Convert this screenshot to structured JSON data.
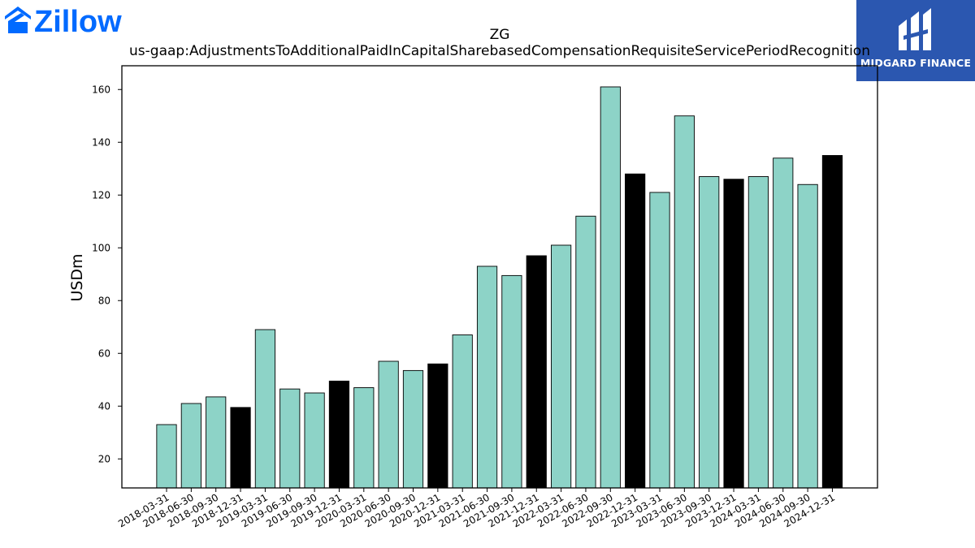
{
  "logos": {
    "left_brand": "Zillow",
    "right_brand": "MIDGARD FINANCE"
  },
  "colors": {
    "bar_default": "#8dd3c7",
    "bar_q4": "#000000",
    "zillow_blue": "#006aff",
    "midgard_blue": "#2b57b0"
  },
  "chart_data": {
    "type": "bar",
    "title": "ZG",
    "subtitle": "us-gaap:AdjustmentsToAdditionalPaidInCapitalSharebasedCompensationRequisiteServicePeriodRecognition",
    "xlabel": "",
    "ylabel": "USDm",
    "ylim": [
      9,
      169
    ],
    "yticks": [
      20,
      40,
      60,
      80,
      100,
      120,
      140,
      160
    ],
    "grid": false,
    "categories": [
      "2018-03-31",
      "2018-06-30",
      "2018-09-30",
      "2018-12-31",
      "2019-03-31",
      "2019-06-30",
      "2019-09-30",
      "2019-12-31",
      "2020-03-31",
      "2020-06-30",
      "2020-09-30",
      "2020-12-31",
      "2021-03-31",
      "2021-06-30",
      "2021-09-30",
      "2021-12-31",
      "2022-03-31",
      "2022-06-30",
      "2022-09-30",
      "2022-12-31",
      "2023-03-31",
      "2023-06-30",
      "2023-09-30",
      "2023-12-31",
      "2024-03-31",
      "2024-06-30",
      "2024-09-30",
      "2024-12-31"
    ],
    "values": [
      33,
      41,
      43.5,
      39.5,
      69,
      46.5,
      45,
      49.5,
      47,
      57,
      53.5,
      56,
      67,
      93,
      89.5,
      97,
      101,
      112,
      161,
      128,
      121,
      150,
      127,
      126,
      127,
      134,
      124,
      135
    ],
    "q4_highlight": [
      false,
      false,
      false,
      true,
      false,
      false,
      false,
      true,
      false,
      false,
      false,
      true,
      false,
      false,
      false,
      true,
      false,
      false,
      false,
      true,
      false,
      false,
      false,
      true,
      false,
      false,
      false,
      true
    ]
  }
}
